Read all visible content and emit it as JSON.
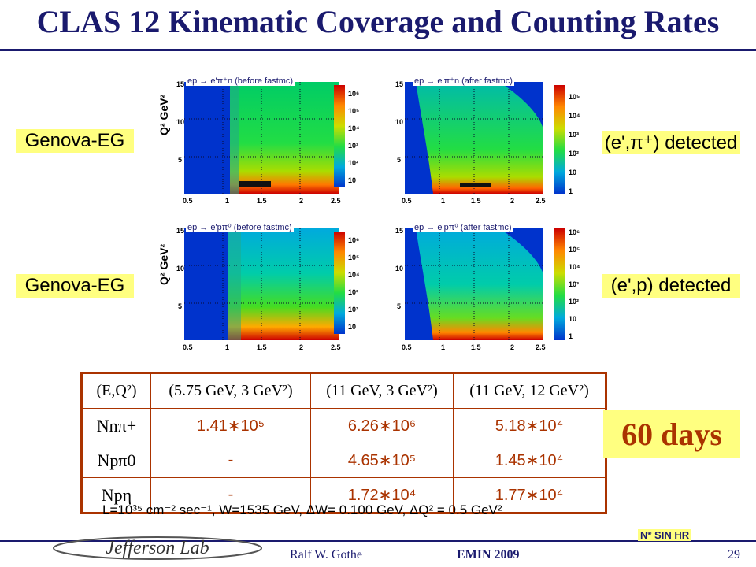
{
  "header": {
    "title": "CLAS 12 Kinematic Coverage and Counting Rates"
  },
  "labels": {
    "left_top": "Genova-EG",
    "left_bottom": "Genova-EG",
    "right_top": "(e',π⁺) detected",
    "right_bottom": "(e',p) detected"
  },
  "plots": [
    {
      "title": "ep → e'π⁺n (before fastmc)",
      "ylabel": "Q² GeV²",
      "xticks": [
        "0.5",
        "1",
        "1.5",
        "2",
        "2.5"
      ],
      "yticks": [
        "15",
        "10",
        "5"
      ],
      "cbar": [
        "10⁶",
        "10⁵",
        "10⁴",
        "10³",
        "10²",
        "10"
      ]
    },
    {
      "title": "ep → e'π⁺n (after fastmc)",
      "ylabel": "",
      "xticks": [
        "0.5",
        "1",
        "1.5",
        "2",
        "2.5"
      ],
      "yticks": [
        "15",
        "10",
        "5"
      ],
      "cbar": [
        "10⁵",
        "10⁴",
        "10³",
        "10²",
        "10",
        "1"
      ]
    },
    {
      "title": "ep → e'pπ⁰ (before fastmc)",
      "ylabel": "Q² GeV²",
      "xticks": [
        "0.5",
        "1",
        "1.5",
        "2",
        "2.5"
      ],
      "yticks": [
        "15",
        "10",
        "5"
      ],
      "cbar": [
        "10⁶",
        "10⁵",
        "10⁴",
        "10³",
        "10²",
        "10"
      ]
    },
    {
      "title": "ep → e'pπ⁰ (after fastmc)",
      "ylabel": "",
      "xticks": [
        "0.5",
        "1",
        "1.5",
        "2",
        "2.5"
      ],
      "yticks": [
        "15",
        "10",
        "5"
      ],
      "cbar": [
        "10⁶",
        "10⁵",
        "10⁴",
        "10³",
        "10²",
        "10",
        "1"
      ]
    }
  ],
  "table": {
    "headers": [
      "(E,Q²)",
      "(5.75 GeV, 3 GeV²)",
      "(11 GeV, 3 GeV²)",
      "(11 GeV, 12 GeV²)"
    ],
    "rows": [
      {
        "label": "Nnπ+",
        "values": [
          "1.41∗10⁵",
          "6.26∗10⁶",
          "5.18∗10⁴"
        ]
      },
      {
        "label": "Npπ0",
        "values": [
          "-",
          "4.65∗10⁵",
          "1.45∗10⁴"
        ]
      },
      {
        "label": "Npη",
        "values": [
          "-",
          "1.72∗10⁴",
          "1.77∗10⁴"
        ]
      }
    ]
  },
  "days": "60 days",
  "footnote": "L=10³⁵ cm⁻² sec⁻¹, W=1535 GeV, ΔW= 0.100 GeV, ΔQ² = 0.5 GeV²",
  "footer": {
    "author": "Ralf  W. Gothe",
    "conference": "EMIN 2009",
    "page": "29",
    "logo_text": "Jefferson Lab",
    "nstar": "N* SIN HR"
  },
  "colors": {
    "title": "#1a1a6e",
    "highlight": "#ffff80",
    "value": "#aa3300"
  }
}
